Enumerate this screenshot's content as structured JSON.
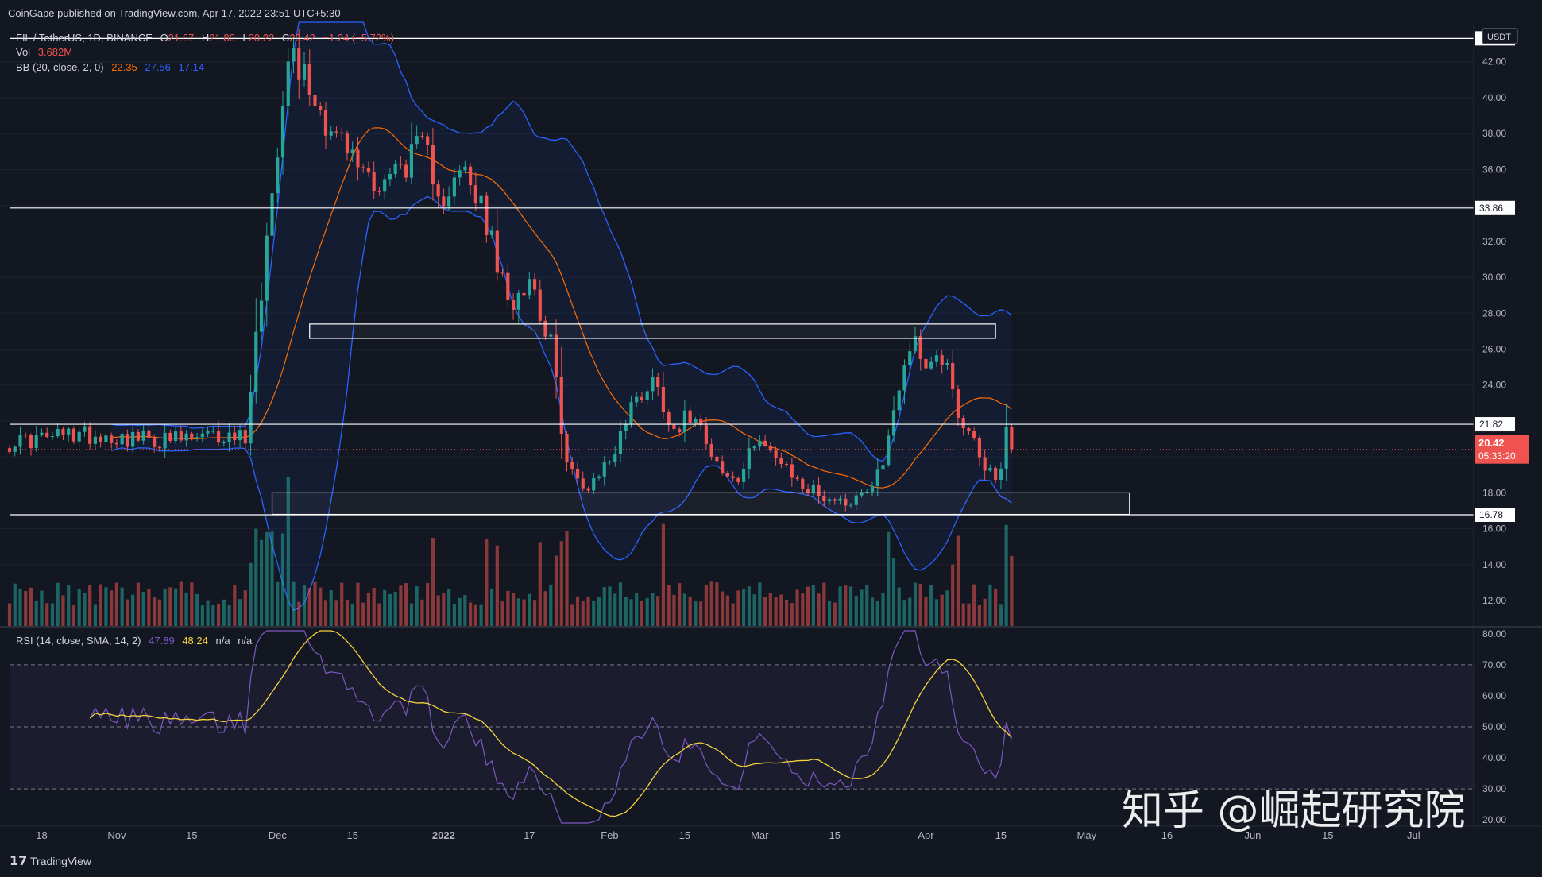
{
  "header": {
    "published": "CoinGape published on TradingView.com, Apr 17, 2022 23:51 UTC+5:30",
    "pair": "FIL / TetherUS, 1D, BINANCE",
    "o_label": "O",
    "o_val": "21.67",
    "h_label": "H",
    "h_val": "21.80",
    "l_label": "L",
    "l_val": "20.22",
    "c_label": "C",
    "c_val": "20.42",
    "change": "−1.24 (−5.72%)",
    "vol_label": "Vol",
    "vol_val": "3.682M",
    "bb_label": "BB (20, close, 2, 0)",
    "bb_basis": "22.35",
    "bb_upper": "27.56",
    "bb_lower": "17.14"
  },
  "rsi_header": {
    "label": "RSI (14, close, SMA, 14, 2)",
    "rsi": "47.89",
    "sma": "48.24",
    "na1": "n/a",
    "na2": "n/a"
  },
  "price_axis": {
    "currency": "USDT",
    "ticks": [
      "42.00",
      "40.00",
      "38.00",
      "36.00",
      "34.00",
      "32.00",
      "30.00",
      "28.00",
      "26.00",
      "24.00",
      "22.00",
      "20.00",
      "18.00",
      "16.00",
      "14.00",
      "12.00"
    ],
    "levels": [
      "33.86",
      "21.82",
      "16.78"
    ],
    "last_price": "20.42",
    "countdown": "05:33:20"
  },
  "rsi_axis": {
    "ticks": [
      "80.00",
      "70.00",
      "60.00",
      "50.00",
      "40.00",
      "30.00",
      "20.00"
    ]
  },
  "time_axis": {
    "labels": [
      "18",
      "Nov",
      "15",
      "Dec",
      "15",
      "2022",
      "17",
      "Feb",
      "15",
      "Mar",
      "15",
      "Apr",
      "15",
      "May",
      "16",
      "Jun",
      "15",
      "Jul"
    ]
  },
  "footer": {
    "logo_text": "TradingView"
  },
  "watermark": "知乎 @崛起研究院",
  "colors": {
    "bg": "#131722",
    "up": "#26a69a",
    "down": "#ef5350",
    "bb_band": "#2962ff",
    "bb_basis": "#ff6d00",
    "rsi": "#7e57c2",
    "rsi_sma": "#f5d33b",
    "level": "#ffffff"
  },
  "chart_data": {
    "type": "candlestick",
    "title": "FIL / TetherUS, 1D, BINANCE",
    "x_range": [
      "2021-10-12",
      "2022-07-10"
    ],
    "ylim": [
      10.5,
      44.2
    ],
    "horizontal_levels": [
      43.3,
      33.86,
      21.82,
      16.78
    ],
    "zones": [
      {
        "from": "2021-12-07",
        "to": "2022-04-14",
        "low": 26.6,
        "high": 27.4
      },
      {
        "from": "2021-11-30",
        "to": "2022-05-09",
        "low": 16.8,
        "high": 18.0
      }
    ],
    "anchors": [
      [
        "2021-10-12",
        20.8
      ],
      [
        "2021-10-25",
        21.3
      ],
      [
        "2021-11-10",
        20.9
      ],
      [
        "2021-11-25",
        21.2
      ],
      [
        "2021-12-03",
        43.0
      ],
      [
        "2021-12-10",
        38.8
      ],
      [
        "2021-12-15",
        36.6
      ],
      [
        "2021-12-20",
        35.2
      ],
      [
        "2021-12-28",
        37.2
      ],
      [
        "2022-01-01",
        34.6
      ],
      [
        "2022-01-05",
        35.8
      ],
      [
        "2022-01-09",
        33.0
      ],
      [
        "2022-01-13",
        28.4
      ],
      [
        "2022-01-17",
        30.2
      ],
      [
        "2022-01-21",
        26.2
      ],
      [
        "2022-01-24",
        19.6
      ],
      [
        "2022-01-27",
        18.2
      ],
      [
        "2022-02-01",
        19.8
      ],
      [
        "2022-02-05",
        22.8
      ],
      [
        "2022-02-09",
        24.4
      ],
      [
        "2022-02-13",
        21.6
      ],
      [
        "2022-02-17",
        22.6
      ],
      [
        "2022-02-22",
        19.0
      ],
      [
        "2022-02-25",
        18.6
      ],
      [
        "2022-03-01",
        21.4
      ],
      [
        "2022-03-05",
        19.4
      ],
      [
        "2022-03-10",
        18.2
      ],
      [
        "2022-03-16",
        17.5
      ],
      [
        "2022-03-20",
        17.9
      ],
      [
        "2022-03-24",
        19.6
      ],
      [
        "2022-03-26",
        22.8
      ],
      [
        "2022-03-29",
        26.4
      ],
      [
        "2022-04-02",
        25.2
      ],
      [
        "2022-04-05",
        25.6
      ],
      [
        "2022-04-07",
        22.4
      ],
      [
        "2022-04-10",
        20.6
      ],
      [
        "2022-04-12",
        19.0
      ],
      [
        "2022-04-15",
        19.2
      ],
      [
        "2022-04-16",
        21.67
      ],
      [
        "2022-04-17",
        20.42
      ]
    ],
    "last_candle": {
      "open": 21.67,
      "high": 21.8,
      "low": 20.22,
      "close": 20.42
    },
    "bollinger": {
      "period": 20,
      "mult": 2,
      "last": {
        "basis": 22.35,
        "upper": 27.56,
        "lower": 17.14
      }
    },
    "volume": {
      "last": "3.682M"
    },
    "rsi": {
      "period": 14,
      "sma": 14,
      "ylim": [
        18,
        82
      ],
      "bands": [
        30,
        50,
        70
      ],
      "last": 47.89,
      "last_sma": 48.24
    }
  }
}
